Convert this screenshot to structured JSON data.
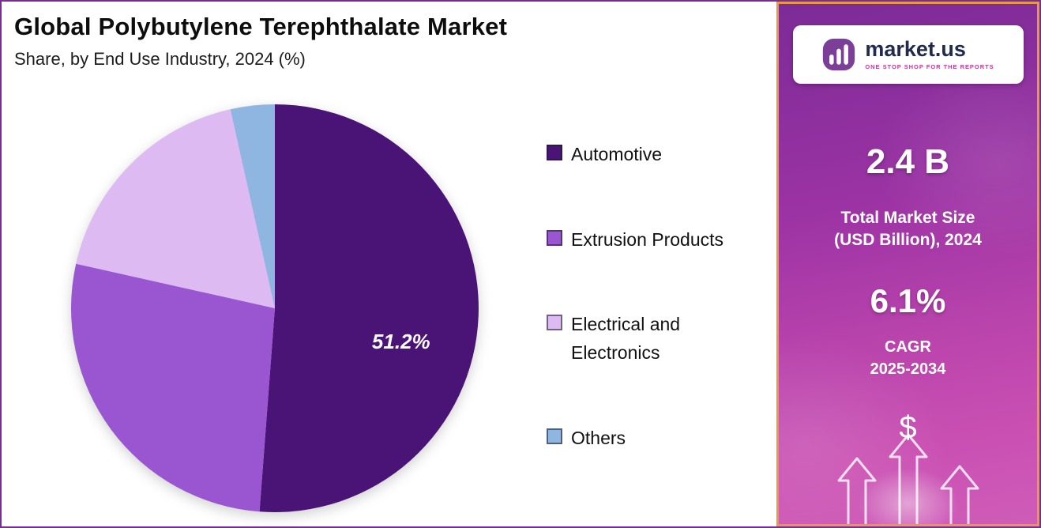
{
  "chart_data": {
    "type": "pie",
    "title": "Global Polybutylene Terephthalate Market",
    "subtitle": "Share, by End Use Industry, 2024 (%)",
    "unit": "%",
    "start_angle_deg": 0,
    "direction": "clockwise",
    "legend_position": "right",
    "segments": [
      {
        "label": "Automotive",
        "value": 51.2,
        "color": "#4a1376",
        "data_label": "51.2%"
      },
      {
        "label": "Extrusion Products",
        "value": 27.3,
        "color": "#9a55d1"
      },
      {
        "label": "Electrical and Electronics",
        "value": 18.0,
        "color": "#ddbaf2"
      },
      {
        "label": "Others",
        "value": 3.5,
        "color": "#8fb5e1"
      }
    ]
  },
  "sidebar": {
    "logo": {
      "brand": "market.us",
      "tagline": "ONE STOP SHOP FOR THE REPORTS"
    },
    "market_size": {
      "value": "2.4 B",
      "label_line1": "Total Market Size",
      "label_line2": "(USD Billion), 2024"
    },
    "cagr": {
      "value": "6.1%",
      "label_line1": "CAGR",
      "label_line2": "2025-2034"
    },
    "dollar_symbol": "$"
  },
  "colors": {
    "page_border": "#7a2b96",
    "panel_border": "#e89b3e",
    "panel_gradient_top": "#7c2b97",
    "panel_gradient_bottom": "#cf5cb8",
    "logo_icon": "#7b3f98",
    "brand_text": "#222a4d",
    "tagline_text": "#bd3b9e",
    "data_label_text": "#ffffff"
  }
}
